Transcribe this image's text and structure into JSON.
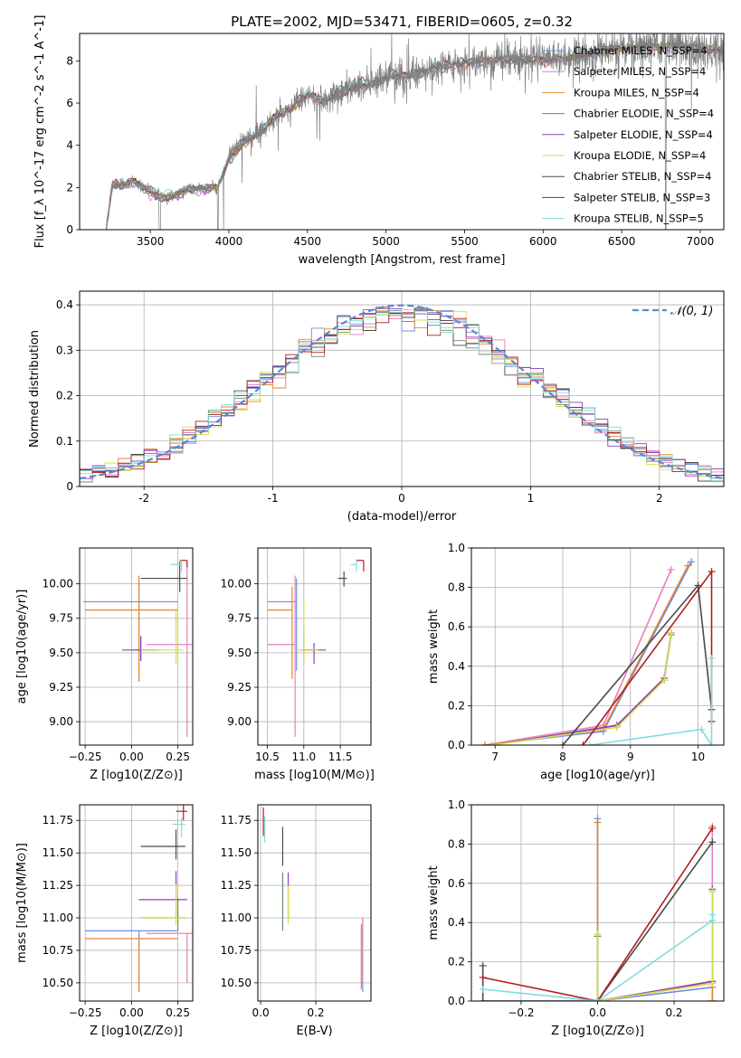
{
  "figure_title": "PLATE=2002, MJD=53471, FIBERID=0605, z=0.32",
  "series_legend": [
    {
      "name": "Chabrier MILES, N_SSP=4",
      "color": "#6d8fe0"
    },
    {
      "name": "Salpeter MILES, N_SSP=4",
      "color": "#e67fbd"
    },
    {
      "name": "Kroupa MILES, N_SSP=4",
      "color": "#e6862e"
    },
    {
      "name": "Chabrier ELODIE, N_SSP=4",
      "color": "#6b8e6b"
    },
    {
      "name": "Salpeter ELODIE, N_SSP=4",
      "color": "#8e3fb5"
    },
    {
      "name": "Kroupa ELODIE, N_SSP=4",
      "color": "#d8dd4a"
    },
    {
      "name": "Chabrier STELIB, N_SSP=4",
      "color": "#4a4a4a"
    },
    {
      "name": "Salpeter STELIB, N_SSP=3",
      "color": "#b01e1e"
    },
    {
      "name": "Kroupa STELIB, N_SSP=5",
      "color": "#80dcdc"
    }
  ],
  "chart_data": [
    {
      "id": "spectrum",
      "type": "line",
      "xlabel": "wavelength [Angstrom, rest frame]",
      "ylabel": "Flux [f_λ 10^-17 erg cm^-2 s^-1 A^-1]",
      "xlim": [
        3050,
        7150
      ],
      "ylim": [
        0,
        9.3
      ],
      "xticks": [
        3500,
        4000,
        4500,
        5000,
        5500,
        6000,
        6500,
        7000
      ],
      "yticks": [
        0,
        2,
        4,
        6,
        8
      ],
      "data_color": "#808080",
      "model_continuum": {
        "x": [
          3220,
          3260,
          3400,
          3480,
          3560,
          3650,
          3750,
          3850,
          3930,
          4000,
          4100,
          4200,
          4300,
          4400,
          4500,
          4600,
          4700,
          4800,
          4900,
          5000,
          5200,
          5400,
          5600,
          5800,
          6000,
          6200,
          6400,
          6600,
          6800,
          7000,
          7150
        ],
        "y": [
          0.0,
          2.1,
          2.2,
          1.9,
          1.6,
          1.6,
          1.9,
          2.0,
          2.0,
          3.4,
          4.2,
          4.6,
          5.4,
          5.8,
          6.4,
          6.1,
          6.5,
          6.8,
          6.9,
          7.2,
          7.4,
          7.8,
          8.0,
          8.1,
          8.0,
          8.2,
          8.5,
          8.7,
          8.7,
          8.6,
          8.5
        ]
      }
    },
    {
      "id": "residuals",
      "type": "area",
      "xlabel": "(data-model)/error",
      "ylabel": "Normed distribution",
      "xlim": [
        -2.5,
        2.5
      ],
      "ylim": [
        0,
        0.43
      ],
      "xticks": [
        -2,
        -1,
        0,
        1,
        2
      ],
      "yticks": [
        0.0,
        0.1,
        0.2,
        0.3,
        0.4
      ],
      "reference_label": "𝒩(0, 1)",
      "reference_color": "#5b86d6",
      "grid": true
    },
    {
      "id": "z_vs_age",
      "type": "scatter",
      "xlabel": "Z [log10(Z/Z⊙)]",
      "ylabel": "age [log10(age/yr)]",
      "xlim": [
        -0.28,
        0.33
      ],
      "ylim": [
        8.83,
        10.26
      ],
      "xticks": [
        -0.25,
        0.0,
        0.25
      ],
      "xtick_labels": [
        "−0.25",
        "0.00",
        "0.25"
      ],
      "yticks": [
        9.0,
        9.25,
        9.5,
        9.75,
        10.0
      ],
      "ytick_labels": [
        "9.00",
        "9.25",
        "9.50",
        "9.75",
        "10.00"
      ],
      "grid": true,
      "points": [
        {
          "s": 0,
          "x": 0.04,
          "xerr": [
            0.3,
            0.21
          ],
          "y": 9.87,
          "yerr": [
            0.58,
            0.15
          ]
        },
        {
          "s": 1,
          "x": 0.3,
          "xerr": [
            0.22,
            0.04
          ],
          "y": 9.56,
          "yerr": [
            0.67,
            0.6
          ]
        },
        {
          "s": 2,
          "x": 0.04,
          "xerr": [
            0.29,
            0.21
          ],
          "y": 9.81,
          "yerr": [
            0.5,
            0.25
          ]
        },
        {
          "s": 3,
          "x": 0.05,
          "xerr": [
            0.04,
            0.1
          ],
          "y": 9.52,
          "yerr": [
            0.08,
            0.1
          ]
        },
        {
          "s": 4,
          "x": 0.05,
          "xerr": [
            0.1,
            0.07
          ],
          "y": 9.52,
          "yerr": [
            0.08,
            0.1
          ]
        },
        {
          "s": 5,
          "x": 0.24,
          "xerr": [
            0.19,
            0.04
          ],
          "y": 9.52,
          "yerr": [
            0.1,
            0.3
          ]
        },
        {
          "s": 6,
          "x": 0.26,
          "xerr": [
            0.21,
            0.04
          ],
          "y": 10.04,
          "yerr": [
            0.1,
            0.12
          ]
        },
        {
          "s": 7,
          "x": 0.3,
          "xerr": [
            0.04,
            0.0
          ],
          "y": 10.17,
          "yerr": [
            0.05,
            0.0
          ]
        },
        {
          "s": 8,
          "x": 0.27,
          "xerr": [
            0.06,
            0.0
          ],
          "y": 10.14,
          "yerr": [
            0.05,
            0.03
          ]
        }
      ]
    },
    {
      "id": "mass_vs_age",
      "type": "scatter",
      "xlabel": "mass [log10(M/M⊙)]",
      "ylabel": "",
      "xlim": [
        10.37,
        11.92
      ],
      "ylim": [
        8.83,
        10.26
      ],
      "xticks": [
        10.5,
        11.0,
        11.5
      ],
      "xtick_labels": [
        "10.5",
        "11.0",
        "11.5"
      ],
      "yticks": [
        9.0,
        9.25,
        9.5,
        9.75,
        10.0
      ],
      "ytick_labels": [
        "9.00",
        "9.25",
        "9.50",
        "9.75",
        "10.00"
      ],
      "grid": true,
      "points": [
        {
          "s": 0,
          "x": 10.9,
          "xerr": [
            0.4,
            0.0
          ],
          "y": 9.87,
          "yerr": [
            0.5,
            0.17
          ]
        },
        {
          "s": 1,
          "x": 10.88,
          "xerr": [
            0.38,
            0.0
          ],
          "y": 9.56,
          "yerr": [
            0.67,
            0.5
          ]
        },
        {
          "s": 2,
          "x": 10.84,
          "xerr": [
            0.34,
            0.0
          ],
          "y": 9.81,
          "yerr": [
            0.5,
            0.17
          ]
        },
        {
          "s": 3,
          "x": 11.0,
          "xerr": [
            0.05,
            0.15
          ],
          "y": 9.52,
          "yerr": [
            0.06,
            0.15
          ]
        },
        {
          "s": 4,
          "x": 11.14,
          "xerr": [
            0.14,
            0.16
          ],
          "y": 9.52,
          "yerr": [
            0.1,
            0.05
          ]
        },
        {
          "s": 5,
          "x": 11.0,
          "xerr": [
            0.1,
            0.2
          ],
          "y": 9.52,
          "yerr": [
            0.1,
            0.38
          ]
        },
        {
          "s": 6,
          "x": 11.55,
          "xerr": [
            0.08,
            0.04
          ],
          "y": 10.04,
          "yerr": [
            0.06,
            0.05
          ]
        },
        {
          "s": 7,
          "x": 11.82,
          "xerr": [
            0.1,
            0.0
          ],
          "y": 10.17,
          "yerr": [
            0.08,
            0.0
          ]
        },
        {
          "s": 8,
          "x": 11.72,
          "xerr": [
            0.08,
            0.0
          ],
          "y": 10.14,
          "yerr": [
            0.05,
            0.04
          ]
        }
      ]
    },
    {
      "id": "age_vs_weight",
      "type": "line",
      "xlabel": "age [log10(age/yr)]",
      "ylabel": "mass weight",
      "xlim": [
        6.65,
        10.38
      ],
      "ylim": [
        0,
        1.0
      ],
      "xticks": [
        7,
        8,
        9,
        10
      ],
      "xtick_labels": [
        "7",
        "8",
        "9",
        "10"
      ],
      "yticks": [
        0,
        0.2,
        0.4,
        0.6,
        0.8,
        1.0
      ],
      "ytick_labels": [
        "0.0",
        "0.2",
        "0.4",
        "0.6",
        "0.8",
        "1.0"
      ],
      "grid": true,
      "series": [
        {
          "s": 0,
          "x": [
            6.85,
            8.6,
            9.9
          ],
          "y": [
            0.0,
            0.07,
            0.93
          ]
        },
        {
          "s": 1,
          "x": [
            6.85,
            8.6,
            9.6
          ],
          "y": [
            0.0,
            0.1,
            0.89
          ]
        },
        {
          "s": 2,
          "x": [
            6.85,
            8.6,
            9.85
          ],
          "y": [
            0.0,
            0.08,
            0.91
          ]
        },
        {
          "s": 3,
          "x": [
            6.95,
            8.8,
            9.5,
            9.6
          ],
          "y": [
            0.0,
            0.1,
            0.33,
            0.56
          ]
        },
        {
          "s": 4,
          "x": [
            6.95,
            8.8,
            9.5,
            9.6
          ],
          "y": [
            0.0,
            0.1,
            0.34,
            0.57
          ]
        },
        {
          "s": 5,
          "x": [
            6.95,
            8.8,
            9.5,
            9.6
          ],
          "y": [
            0.0,
            0.09,
            0.33,
            0.57
          ]
        },
        {
          "s": 6,
          "x": [
            8.0,
            10.0,
            10.2
          ],
          "y": [
            0.0,
            0.81,
            0.18
          ]
        },
        {
          "s": 7,
          "x": [
            8.3,
            10.2,
            10.2
          ],
          "y": [
            0.0,
            0.88,
            0.12
          ]
        },
        {
          "s": 8,
          "x": [
            8.4,
            10.05,
            10.2,
            10.2
          ],
          "y": [
            0.0,
            0.08,
            0.0,
            0.44
          ]
        }
      ]
    },
    {
      "id": "z_vs_mass",
      "type": "scatter",
      "xlabel": "Z [log10(Z/Z⊙)]",
      "ylabel": "mass [log10(M/M⊙)]",
      "xlim": [
        -0.28,
        0.33
      ],
      "ylim": [
        10.36,
        11.87
      ],
      "xticks": [
        -0.25,
        0.0,
        0.25
      ],
      "xtick_labels": [
        "−0.25",
        "0.00",
        "0.25"
      ],
      "yticks": [
        10.5,
        10.75,
        11.0,
        11.25,
        11.5,
        11.75
      ],
      "ytick_labels": [
        "10.50",
        "10.75",
        "11.00",
        "11.25",
        "11.50",
        "11.75"
      ],
      "grid": true,
      "points": [
        {
          "s": 0,
          "x": 0.04,
          "xerr": [
            0.29,
            0.21
          ],
          "y": 10.9,
          "yerr": [
            0.47,
            0.0
          ]
        },
        {
          "s": 1,
          "x": 0.3,
          "xerr": [
            0.22,
            0.04
          ],
          "y": 10.88,
          "yerr": [
            0.38,
            0.0
          ]
        },
        {
          "s": 2,
          "x": 0.04,
          "xerr": [
            0.29,
            0.21
          ],
          "y": 10.84,
          "yerr": [
            0.4,
            0.0
          ]
        },
        {
          "s": 3,
          "x": 0.25,
          "xerr": [
            0.2,
            0.04
          ],
          "y": 11.0,
          "yerr": [
            0.1,
            0.15
          ]
        },
        {
          "s": 4,
          "x": 0.24,
          "xerr": [
            0.2,
            0.06
          ],
          "y": 11.14,
          "yerr": [
            0.14,
            0.22
          ]
        },
        {
          "s": 5,
          "x": 0.24,
          "xerr": [
            0.19,
            0.06
          ],
          "y": 11.0,
          "yerr": [
            0.06,
            0.26
          ]
        },
        {
          "s": 6,
          "x": 0.24,
          "xerr": [
            0.19,
            0.05
          ],
          "y": 11.55,
          "yerr": [
            0.1,
            0.13
          ]
        },
        {
          "s": 7,
          "x": 0.28,
          "xerr": [
            0.04,
            0.02
          ],
          "y": 11.82,
          "yerr": [
            0.07,
            0.05
          ]
        },
        {
          "s": 8,
          "x": 0.27,
          "xerr": [
            0.05,
            0.02
          ],
          "y": 11.72,
          "yerr": [
            0.1,
            0.05
          ]
        }
      ]
    },
    {
      "id": "ebv_vs_mass",
      "type": "scatter",
      "xlabel": "E(B-V)",
      "ylabel": "",
      "xlim": [
        -0.01,
        0.4
      ],
      "ylim": [
        10.36,
        11.87
      ],
      "xticks": [
        0.0,
        0.2
      ],
      "xtick_labels": [
        "0.0",
        "0.2"
      ],
      "yticks": [
        10.5,
        10.75,
        11.0,
        11.25,
        11.5,
        11.75
      ],
      "ytick_labels": [
        "10.50",
        "10.75",
        "11.00",
        "11.25",
        "11.50",
        "11.75"
      ],
      "grid": true,
      "points": [
        {
          "s": 0,
          "x": 0.37,
          "xerr": [
            0,
            0
          ],
          "y": 10.9,
          "yerr": [
            0.47,
            0.1
          ]
        },
        {
          "s": 1,
          "x": 0.37,
          "xerr": [
            0,
            0
          ],
          "y": 10.7,
          "yerr": [
            0.2,
            0.3
          ]
        },
        {
          "s": 2,
          "x": 0.365,
          "xerr": [
            0,
            0
          ],
          "y": 10.75,
          "yerr": [
            0.3,
            0.2
          ]
        },
        {
          "s": 3,
          "x": 0.08,
          "xerr": [
            0,
            0
          ],
          "y": 11.1,
          "yerr": [
            0.2,
            0.25
          ]
        },
        {
          "s": 4,
          "x": 0.1,
          "xerr": [
            0,
            0
          ],
          "y": 11.15,
          "yerr": [
            0.15,
            0.2
          ]
        },
        {
          "s": 5,
          "x": 0.1,
          "xerr": [
            0,
            0
          ],
          "y": 11.05,
          "yerr": [
            0.1,
            0.2
          ]
        },
        {
          "s": 6,
          "x": 0.08,
          "xerr": [
            0,
            0
          ],
          "y": 11.55,
          "yerr": [
            0.15,
            0.15
          ]
        },
        {
          "s": 7,
          "x": 0.01,
          "xerr": [
            0,
            0
          ],
          "y": 11.75,
          "yerr": [
            0.12,
            0.1
          ]
        },
        {
          "s": 8,
          "x": 0.015,
          "xerr": [
            0,
            0
          ],
          "y": 11.68,
          "yerr": [
            0.1,
            0.1
          ]
        }
      ]
    },
    {
      "id": "z_vs_weight",
      "type": "line",
      "xlabel": "Z [log10(Z/Z⊙)]",
      "ylabel": "mass weight",
      "xlim": [
        -0.33,
        0.33
      ],
      "ylim": [
        0,
        1.0
      ],
      "xticks": [
        -0.2,
        0.0,
        0.2
      ],
      "xtick_labels": [
        "−0.2",
        "0.0",
        "0.2"
      ],
      "yticks": [
        0,
        0.2,
        0.4,
        0.6,
        0.8,
        1.0
      ],
      "ytick_labels": [
        "0.0",
        "0.2",
        "0.4",
        "0.6",
        "0.8",
        "1.0"
      ],
      "grid": true,
      "series": [
        {
          "s": 0,
          "x": [
            0.0,
            0.0,
            0.3,
            0.3
          ],
          "y": [
            0.93,
            0.0,
            0.07,
            0.0
          ]
        },
        {
          "s": 1,
          "x": [
            0.0,
            0.3,
            0.3,
            0.3
          ],
          "y": [
            0.0,
            0.1,
            0.89,
            0.0
          ]
        },
        {
          "s": 2,
          "x": [
            0.0,
            0.0,
            0.3,
            0.3
          ],
          "y": [
            0.91,
            0.0,
            0.09,
            0.0
          ]
        },
        {
          "s": 3,
          "x": [
            0.0,
            0.0,
            0.3,
            0.3
          ],
          "y": [
            0.33,
            0.0,
            0.1,
            0.56
          ]
        },
        {
          "s": 4,
          "x": [
            0.0,
            0.3,
            0.3
          ],
          "y": [
            0.0,
            0.1,
            0.57
          ]
        },
        {
          "s": 5,
          "x": [
            0.0,
            0.0,
            0.3,
            0.3
          ],
          "y": [
            0.34,
            0.0,
            0.09,
            0.56
          ]
        },
        {
          "s": 6,
          "x": [
            -0.3,
            -0.3,
            0.0,
            0.3
          ],
          "y": [
            0.18,
            0.0,
            0.0,
            0.81
          ]
        },
        {
          "s": 7,
          "x": [
            -0.3,
            0.0,
            0.3
          ],
          "y": [
            0.12,
            0.0,
            0.88
          ]
        },
        {
          "s": 8,
          "x": [
            -0.3,
            0.0,
            0.3,
            0.3
          ],
          "y": [
            0.06,
            0.0,
            0.41,
            0.44
          ]
        }
      ]
    }
  ]
}
